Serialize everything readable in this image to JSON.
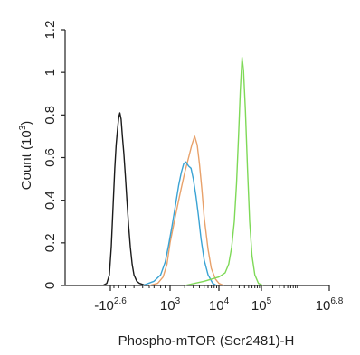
{
  "chart_data": {
    "type": "line",
    "plot_style": "flow cytometry histogram overlay",
    "xlabel": "Phospho-mTOR (Ser2481)-H",
    "ylabel": "Count (10^3)",
    "ylabel_parts": {
      "main": "Count (10",
      "exp": "3",
      "close": ")"
    },
    "ylim": [
      0,
      1.2
    ],
    "y_ticks": [
      {
        "value": 0,
        "label": "0"
      },
      {
        "value": 0.2,
        "label": "0.2"
      },
      {
        "value": 0.4,
        "label": "0.4"
      },
      {
        "value": 0.6,
        "label": "0.6"
      },
      {
        "value": 0.8,
        "label": "0.8"
      },
      {
        "value": 1.0,
        "label": "1"
      },
      {
        "value": 1.2,
        "label": "1.2"
      }
    ],
    "x_scale": "biexponential",
    "xlim": [
      -398,
      6309573
    ],
    "x_ticks": [
      {
        "value": -398,
        "base": "-10",
        "exp": "2.6"
      },
      {
        "value": 1000,
        "base": "10",
        "exp": "3"
      },
      {
        "value": 10000,
        "base": "10",
        "exp": "4"
      },
      {
        "value": 100000,
        "base": "10",
        "exp": "5"
      },
      {
        "value": 6309573,
        "base": "10",
        "exp": "6.8"
      }
    ],
    "grid": false,
    "legend": "none",
    "series": [
      {
        "color": "#1a1a1a",
        "x": [
          -700,
          -520,
          -430,
          -370,
          -320,
          -280,
          -250,
          -220,
          -200,
          -180,
          -160,
          -140,
          -120,
          -100,
          -80,
          -60,
          -40,
          -20,
          0,
          30,
          60,
          100,
          150
        ],
        "y": [
          0,
          0.01,
          0.05,
          0.18,
          0.38,
          0.55,
          0.66,
          0.74,
          0.79,
          0.81,
          0.78,
          0.7,
          0.62,
          0.52,
          0.4,
          0.28,
          0.18,
          0.1,
          0.05,
          0.02,
          0.01,
          0.005,
          0
        ]
      },
      {
        "color": "#e8a16a",
        "x": [
          200,
          400,
          600,
          800,
          1000,
          1300,
          1600,
          2000,
          2400,
          2800,
          3200,
          3600,
          4000,
          4500,
          5000,
          6000,
          7000,
          8500,
          10000,
          13000
        ],
        "y": [
          0,
          0.01,
          0.04,
          0.1,
          0.2,
          0.33,
          0.43,
          0.53,
          0.6,
          0.66,
          0.7,
          0.66,
          0.57,
          0.45,
          0.32,
          0.17,
          0.08,
          0.03,
          0.01,
          0
        ]
      },
      {
        "color": "#3aa3d4",
        "x": [
          100,
          300,
          500,
          700,
          900,
          1100,
          1300,
          1500,
          1700,
          1900,
          2100,
          2400,
          2700,
          3000,
          3400,
          3800,
          4300,
          5000,
          6000,
          7500,
          9000
        ],
        "y": [
          0,
          0.02,
          0.05,
          0.11,
          0.19,
          0.28,
          0.38,
          0.47,
          0.53,
          0.57,
          0.58,
          0.56,
          0.55,
          0.5,
          0.42,
          0.33,
          0.22,
          0.12,
          0.05,
          0.01,
          0
        ]
      },
      {
        "color": "#7ed957",
        "x": [
          2000,
          5000,
          10000,
          14000,
          17000,
          20000,
          23000,
          26000,
          29000,
          32000,
          35000,
          38000,
          42000,
          47000,
          53000,
          60000,
          70000,
          85000,
          110000
        ],
        "y": [
          0,
          0.02,
          0.04,
          0.06,
          0.1,
          0.18,
          0.3,
          0.48,
          0.7,
          0.92,
          1.07,
          1.01,
          0.82,
          0.55,
          0.3,
          0.14,
          0.05,
          0.01,
          0
        ]
      }
    ]
  }
}
